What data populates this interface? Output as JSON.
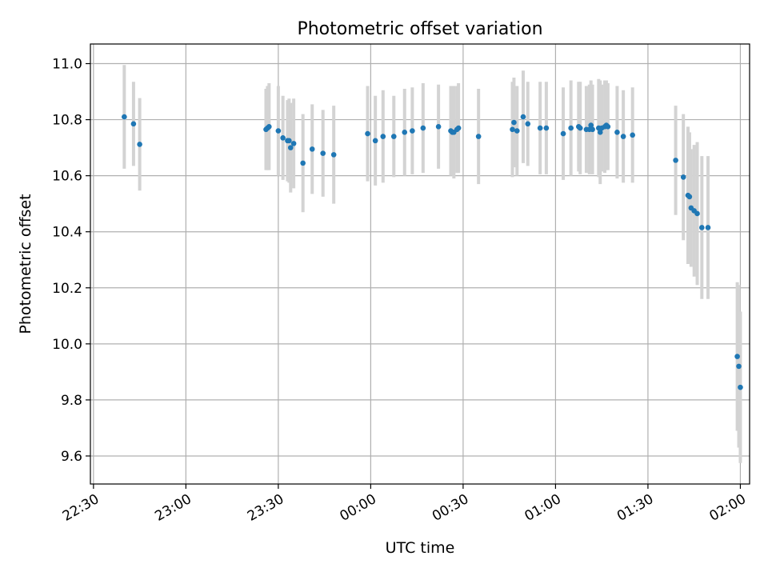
{
  "chart_data": {
    "type": "scatter",
    "title": "Photometric offset variation",
    "xlabel": "UTC time",
    "ylabel": "Photometric offset",
    "xlim": [
      "22:29",
      "02:03"
    ],
    "ylim": [
      9.5,
      11.07
    ],
    "xticks": [
      "22:30",
      "23:00",
      "23:30",
      "00:00",
      "00:30",
      "01:00",
      "01:30",
      "02:00"
    ],
    "yticks": [
      "9.6",
      "9.8",
      "10.0",
      "10.2",
      "10.4",
      "10.6",
      "10.8",
      "11.0"
    ],
    "grid": true,
    "colors": {
      "point": "#1f77b4",
      "errorbar": "#d3d3d3",
      "grid": "#b0b0b0"
    },
    "series": [
      {
        "x": [
          "22:40",
          "22:43",
          "22:45",
          "23:26",
          "23:26.5",
          "23:27",
          "23:30",
          "23:31.5",
          "23:33",
          "23:33.5",
          "23:34",
          "23:35",
          "23:38",
          "23:41",
          "23:44.5",
          "23:48",
          "23:59",
          "00:01.5",
          "00:04",
          "00:07.5",
          "00:11",
          "00:13.5",
          "00:17",
          "00:22",
          "00:26",
          "00:26.5",
          "00:27",
          "00:28",
          "00:28.5",
          "00:35",
          "00:46",
          "00:46.5",
          "00:47.5",
          "00:49.5",
          "00:51",
          "00:55",
          "00:57",
          "01:02.5",
          "01:05",
          "01:07.5",
          "01:08",
          "01:10",
          "01:11",
          "01:11.5",
          "01:12",
          "01:14",
          "01:14.5",
          "01:15",
          "01:16",
          "01:16.5",
          "01:17",
          "01:20",
          "01:22",
          "01:25",
          "01:39",
          "01:41.5",
          "01:43",
          "01:43.5",
          "01:44",
          "01:45",
          "01:46",
          "01:47.5",
          "01:49.5",
          "01:59",
          "01:59.5",
          "02:00"
        ],
        "y": [
          10.81,
          10.785,
          10.712,
          10.765,
          10.77,
          10.775,
          10.76,
          10.735,
          10.725,
          10.725,
          10.7,
          10.715,
          10.645,
          10.695,
          10.68,
          10.675,
          10.75,
          10.725,
          10.74,
          10.74,
          10.755,
          10.76,
          10.77,
          10.775,
          10.76,
          10.755,
          10.755,
          10.765,
          10.77,
          10.74,
          10.765,
          10.79,
          10.76,
          10.81,
          10.785,
          10.77,
          10.77,
          10.75,
          10.77,
          10.775,
          10.77,
          10.765,
          10.765,
          10.78,
          10.765,
          10.77,
          10.755,
          10.77,
          10.775,
          10.78,
          10.775,
          10.755,
          10.74,
          10.745,
          10.655,
          10.595,
          10.53,
          10.525,
          10.485,
          10.475,
          10.465,
          10.415,
          10.415,
          9.955,
          9.92,
          9.845
        ],
        "yerr": [
          0.185,
          0.15,
          0.165,
          0.145,
          0.15,
          0.155,
          0.16,
          0.15,
          0.145,
          0.15,
          0.16,
          0.16,
          0.175,
          0.16,
          0.155,
          0.175,
          0.17,
          0.16,
          0.165,
          0.145,
          0.155,
          0.155,
          0.16,
          0.15,
          0.16,
          0.155,
          0.165,
          0.155,
          0.16,
          0.17,
          0.17,
          0.16,
          0.16,
          0.165,
          0.15,
          0.165,
          0.165,
          0.165,
          0.17,
          0.16,
          0.165,
          0.155,
          0.16,
          0.16,
          0.16,
          0.175,
          0.185,
          0.155,
          0.165,
          0.16,
          0.155,
          0.165,
          0.165,
          0.17,
          0.195,
          0.225,
          0.245,
          0.23,
          0.21,
          0.235,
          0.255,
          0.255,
          0.255,
          0.265,
          0.29,
          0.27
        ]
      }
    ]
  }
}
